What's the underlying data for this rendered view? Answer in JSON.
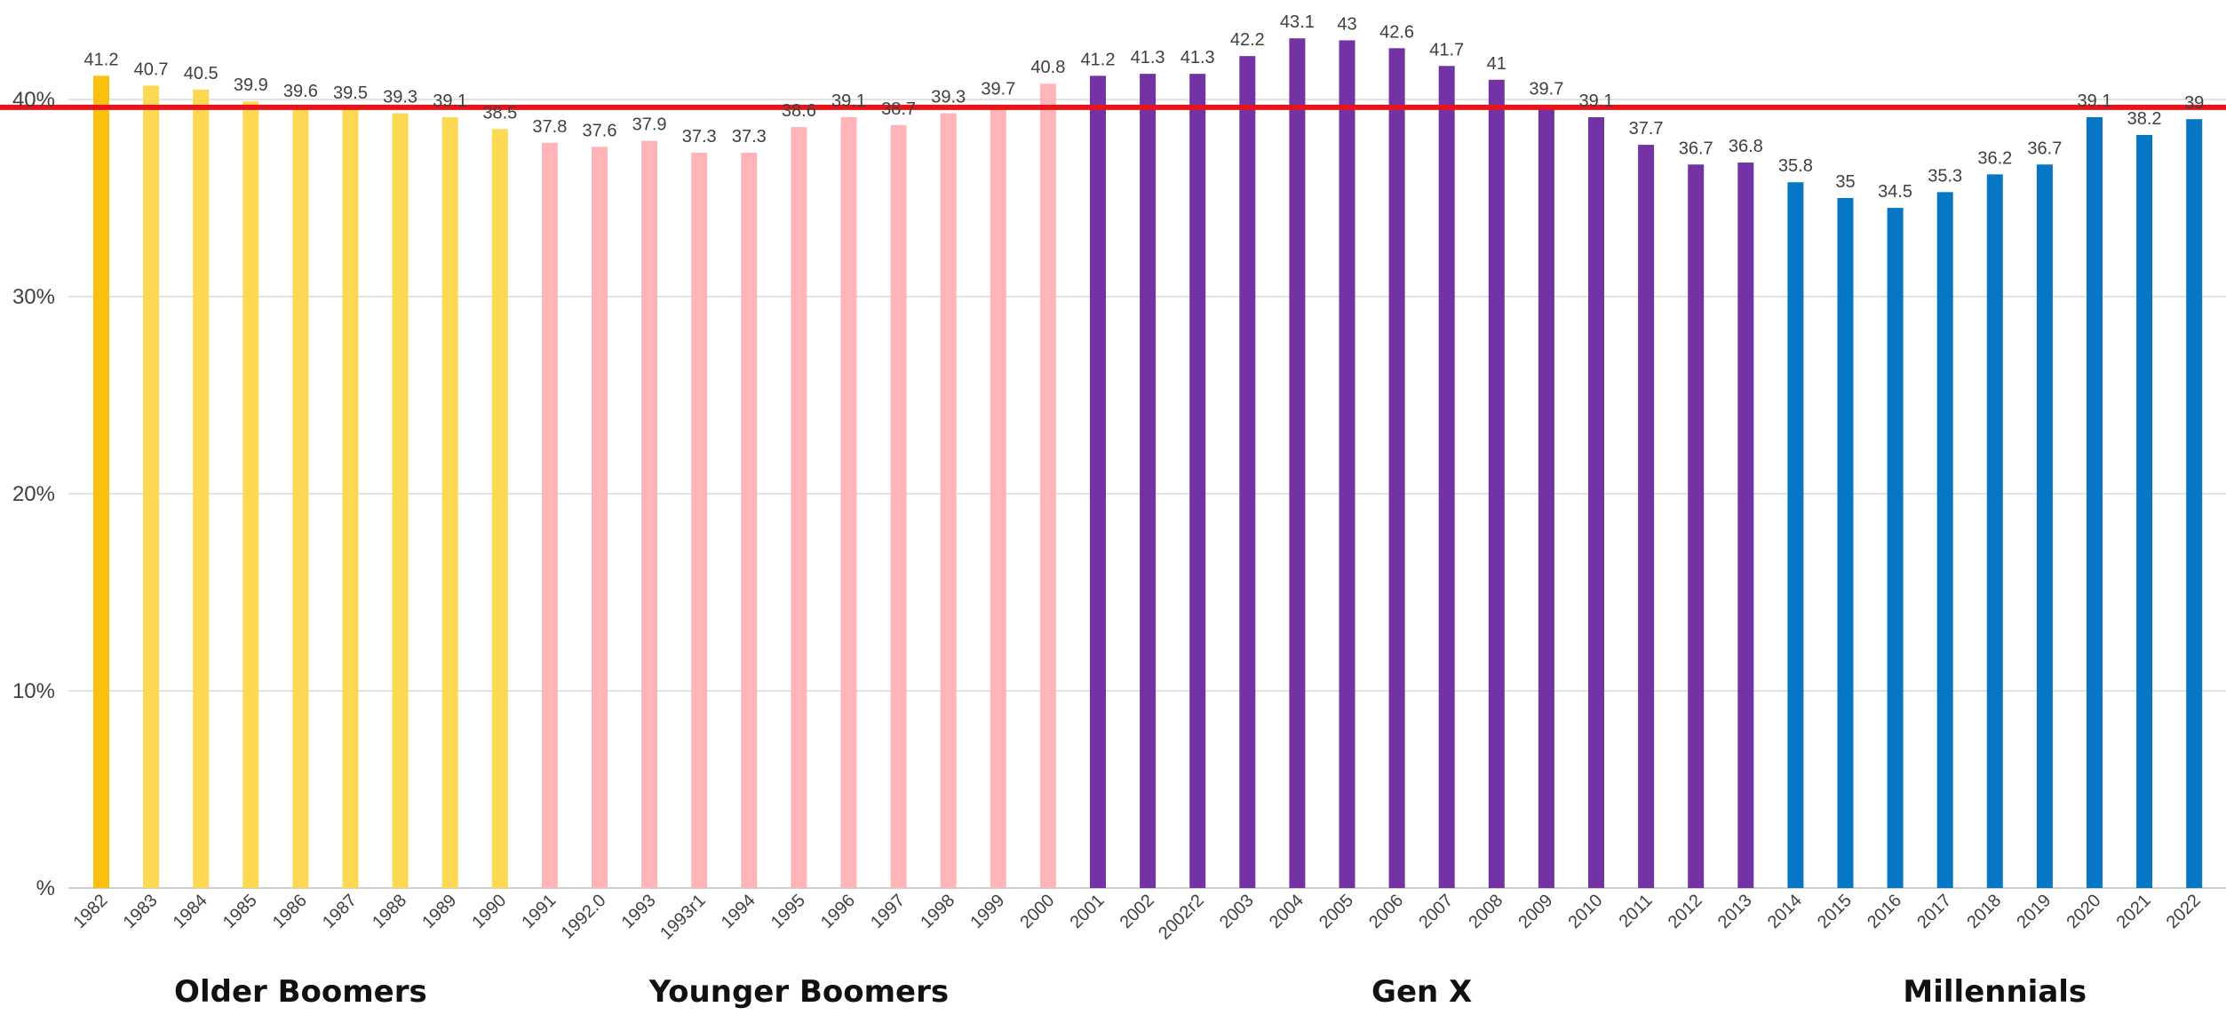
{
  "chart_data": {
    "type": "bar",
    "categories": [
      "1982",
      "1983",
      "1984",
      "1985",
      "1986",
      "1987",
      "1988",
      "1989",
      "1990",
      "1991",
      "1992.0",
      "1993",
      "1993r1",
      "1994",
      "1995",
      "1996",
      "1997",
      "1998",
      "1999",
      "2000",
      "2001",
      "2002",
      "2002r2",
      "2003",
      "2004",
      "2005",
      "2006",
      "2007",
      "2008",
      "2009",
      "2010",
      "2011",
      "2012",
      "2013",
      "2014",
      "2015",
      "2016",
      "2017",
      "2018",
      "2019",
      "2020",
      "2021",
      "2022"
    ],
    "values": [
      41.2,
      40.7,
      40.5,
      39.9,
      39.6,
      39.5,
      39.3,
      39.1,
      38.5,
      37.8,
      37.6,
      37.9,
      37.3,
      37.3,
      38.6,
      39.1,
      38.7,
      39.3,
      39.7,
      40.8,
      41.2,
      41.3,
      41.3,
      42.2,
      43.1,
      43,
      42.6,
      41.7,
      41,
      39.7,
      39.1,
      37.7,
      36.7,
      36.8,
      35.8,
      35,
      34.5,
      35.3,
      36.2,
      36.7,
      39.1,
      38.2,
      39
    ],
    "data_labels": [
      "41.2",
      "40.7",
      "40.5",
      "39.9",
      "39.6",
      "39.5",
      "39.3",
      "39.1",
      "38.5",
      "37.8",
      "37.6",
      "37.9",
      "37.3",
      "37.3",
      "38.6",
      "39.1",
      "38.7",
      "39.3",
      "39.7",
      "40.8",
      "41.2",
      "41.3",
      "41.3",
      "42.2",
      "43.1",
      "43",
      "42.6",
      "41.7",
      "41",
      "39.7",
      "39.1",
      "37.7",
      "36.7",
      "36.8",
      "35.8",
      "35",
      "34.5",
      "35.3",
      "36.2",
      "36.7",
      "39.1",
      "38.2",
      "39"
    ],
    "ylim": [
      0,
      45
    ],
    "y_ticks": [
      {
        "value": 0,
        "label": "%"
      },
      {
        "value": 10,
        "label": "10%"
      },
      {
        "value": 20,
        "label": "20%"
      },
      {
        "value": 30,
        "label": "30%"
      },
      {
        "value": 40,
        "label": "40%"
      }
    ],
    "grid": true,
    "reference_line": {
      "value": 39.6,
      "color": "#e8141c"
    },
    "groups": [
      {
        "name": "Older Boomers",
        "first_index": 0,
        "last_index": 8
      },
      {
        "name": "Younger Boomers",
        "first_index": 9,
        "last_index": 19
      },
      {
        "name": "Gen X",
        "first_index": 20,
        "last_index": 33
      },
      {
        "name": "Millennials",
        "first_index": 34,
        "last_index": 42
      }
    ],
    "bar_colors": [
      "#fbbf0f",
      "#fdd853",
      "#fdd853",
      "#fdd853",
      "#fdd853",
      "#fdd853",
      "#fdd853",
      "#fdd853",
      "#fdd853",
      "#ffb5b8",
      "#ffb5b8",
      "#ffb5b8",
      "#ffb5b8",
      "#ffb5b8",
      "#ffb5b8",
      "#ffb5b8",
      "#ffb5b8",
      "#ffb5b8",
      "#ffb5b8",
      "#ffb5b8",
      "#7433a5",
      "#7433a5",
      "#7433a5",
      "#7433a5",
      "#7433a5",
      "#7433a5",
      "#7433a5",
      "#7433a5",
      "#7433a5",
      "#7433a5",
      "#7433a5",
      "#7433a5",
      "#7433a5",
      "#7433a5",
      "#0676c5",
      "#0676c5",
      "#0676c5",
      "#0676c5",
      "#0676c5",
      "#0676c5",
      "#0676c5",
      "#0676c5",
      "#0676c5"
    ],
    "colors": {
      "gridline": "#d9d9d9",
      "axis": "#bfbfbf",
      "label_text": "#404040",
      "tick_text": "#404040"
    }
  }
}
